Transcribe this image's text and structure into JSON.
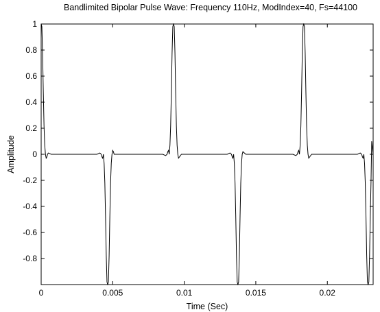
{
  "chart_data": {
    "type": "line",
    "title": "Bandlimited Bipolar Pulse Wave: Frequency 110Hz, ModIndex=40, Fs=44100",
    "xlabel": "Time (Sec)",
    "ylabel": "Amplitude",
    "xlim": [
      0,
      0.0232
    ],
    "ylim": [
      -1,
      1
    ],
    "xticks": [
      0,
      0.005,
      0.01,
      0.015,
      0.02
    ],
    "xtick_labels": [
      "0",
      "0.005",
      "0.01",
      "0.015",
      "0.02"
    ],
    "yticks": [
      1,
      0.8,
      0.6,
      0.4,
      0.2,
      0,
      -0.2,
      -0.4,
      -0.6,
      -0.8
    ],
    "ytick_labels": [
      "1",
      "0.8",
      "0.6",
      "0.4",
      "0.2",
      "0",
      "-0.2",
      "-0.4",
      "-0.6",
      "-0.8"
    ],
    "grid": false,
    "line_color": "#000000",
    "series": [
      {
        "x": [
          0,
          5e-05,
          0.0001,
          0.00015,
          0.0002,
          0.00025,
          0.0003,
          0.00035,
          0.0004,
          0.00045,
          0.0005,
          0.0007,
          0.0039,
          0.0041,
          0.0042,
          0.00425,
          0.0043,
          0.00435,
          0.0044,
          0.00445,
          0.0045,
          0.00455,
          0.0046,
          0.00465,
          0.0047,
          0.00475,
          0.0048,
          0.00485,
          0.0049,
          0.00495,
          0.005,
          0.00505,
          0.0051,
          0.0053,
          0.0085,
          0.0087,
          0.0088,
          0.00885,
          0.0089,
          0.00895,
          0.009,
          0.00905,
          0.0091,
          0.00915,
          0.0092,
          0.00925,
          0.0093,
          0.00935,
          0.0094,
          0.00945,
          0.0095,
          0.00955,
          0.0096,
          0.0098,
          0.013,
          0.0132,
          0.0133,
          0.01335,
          0.0134,
          0.01345,
          0.0135,
          0.01355,
          0.0136,
          0.01365,
          0.0137,
          0.01375,
          0.0138,
          0.01385,
          0.0139,
          0.01395,
          0.014,
          0.01405,
          0.0141,
          0.0143,
          0.0176,
          0.0178,
          0.0179,
          0.01795,
          0.018,
          0.01805,
          0.0181,
          0.01815,
          0.0182,
          0.01825,
          0.0183,
          0.01835,
          0.0184,
          0.01845,
          0.0185,
          0.01855,
          0.0186,
          0.01865,
          0.0187,
          0.0189,
          0.0221,
          0.0223,
          0.0224,
          0.02245,
          0.0225,
          0.02255,
          0.0226,
          0.02265,
          0.0227,
          0.02275,
          0.0228,
          0.02285,
          0.0229,
          0.02295,
          0.023,
          0.02305,
          0.0231,
          0.0232
        ],
        "y": [
          1,
          0.98,
          0.78,
          0.48,
          0.22,
          0.07,
          0.0,
          -0.03,
          -0.02,
          0.0,
          0.01,
          0,
          0,
          0.01,
          0.0,
          -0.02,
          -0.03,
          0.0,
          -0.07,
          -0.22,
          -0.48,
          -0.78,
          -0.98,
          -1,
          -0.98,
          -0.78,
          -0.48,
          -0.22,
          -0.07,
          0.0,
          0.03,
          0.02,
          0.0,
          0,
          0,
          -0.01,
          0.0,
          0.02,
          0.03,
          0.0,
          0.07,
          0.22,
          0.48,
          0.78,
          0.98,
          1,
          0.98,
          0.78,
          0.48,
          0.22,
          0.07,
          0.0,
          -0.03,
          0,
          0,
          0.01,
          0.0,
          -0.02,
          -0.03,
          0.0,
          -0.07,
          -0.22,
          -0.48,
          -0.78,
          -0.98,
          -1,
          -0.98,
          -0.78,
          -0.48,
          -0.22,
          -0.07,
          0.0,
          0.02,
          0,
          0,
          -0.01,
          0.0,
          0.02,
          0.03,
          0.0,
          0.07,
          0.22,
          0.48,
          0.78,
          0.98,
          1,
          0.98,
          0.78,
          0.48,
          0.22,
          0.07,
          0.0,
          -0.03,
          0,
          0,
          0.01,
          0.0,
          -0.02,
          -0.03,
          0.0,
          -0.07,
          -0.22,
          -0.48,
          -0.78,
          -0.98,
          -1,
          -0.98,
          -0.78,
          -0.48,
          -0.22,
          0.1,
          0.0
        ]
      }
    ]
  }
}
